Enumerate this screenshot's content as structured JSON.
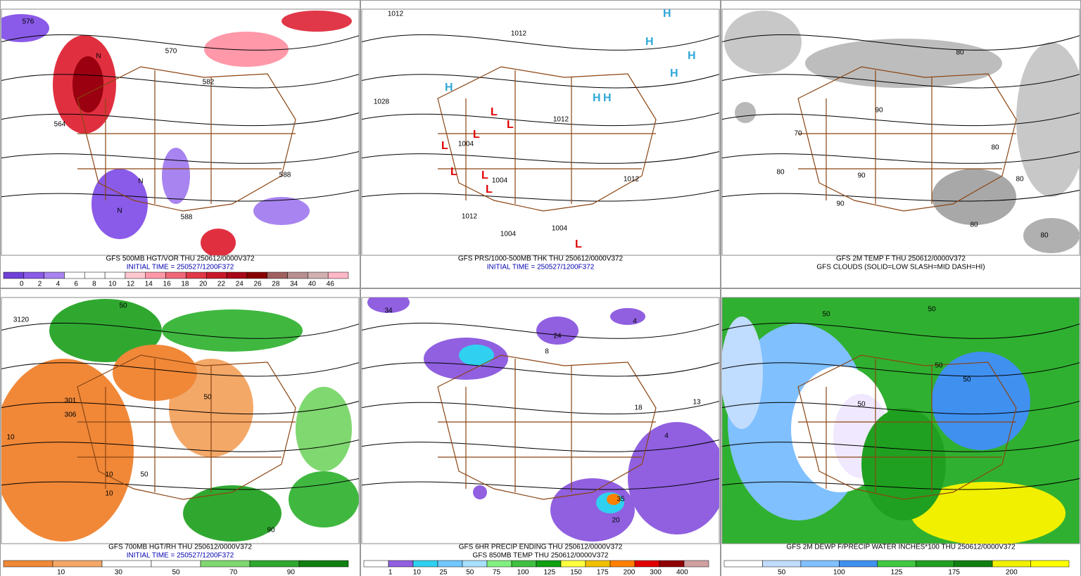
{
  "panels": [
    {
      "title": "GFS 500MB HGT/VOR THU 250612/0000V372",
      "subtitle": "INITIAL TIME = 250527/1200F372",
      "colorbar": {
        "labels": [
          0,
          2,
          4,
          6,
          8,
          10,
          12,
          14,
          16,
          18,
          20,
          22,
          24,
          26,
          28,
          34,
          40,
          46
        ],
        "colors": [
          "#7040d8",
          "#8a5ae8",
          "#a884f0",
          "#ffffff",
          "#ffffff",
          "#ffffff",
          "#ffc8d0",
          "#ff98a8",
          "#f06878",
          "#e03848",
          "#c81828",
          "#a80818",
          "#880000",
          "#a06060",
          "#b89090",
          "#d0b0b0",
          "#ffb8c8"
        ]
      },
      "map_labels": [
        "576",
        "570",
        "564",
        "582",
        "588",
        "588",
        "N",
        "N",
        "N"
      ]
    },
    {
      "title": "GFS PRS/1000-500MB THK THU 250612/0000V372",
      "subtitle": "INITIAL TIME = 250527/1200F372",
      "map_labels": [
        "1012",
        "1012",
        "1028",
        "1012",
        "1012",
        "1004",
        "1004",
        "1012",
        "1004",
        "1004"
      ],
      "highs": [
        "H",
        "H",
        "H",
        "H",
        "H",
        "H",
        "H"
      ],
      "lows": [
        "L",
        "L",
        "L",
        "L",
        "L",
        "L",
        "L",
        "L"
      ],
      "high_color": "#30a8d8",
      "low_color": "#e00000"
    },
    {
      "title": "GFS 2M TEMP F THU 250612/0000V372",
      "subtitle": "GFS CLOUDS (SOLID=LOW SLASH=MID DASH=HI)",
      "map_labels": [
        "80",
        "70",
        "80",
        "90",
        "90",
        "80",
        "80",
        "80",
        "90",
        "80"
      ]
    },
    {
      "title": "GFS 700MB HGT/RH THU 250612/0000V372",
      "subtitle": "INITIAL TIME = 250527/1200F372",
      "colorbar": {
        "labels": [
          10,
          30,
          50,
          70,
          90
        ],
        "colors": [
          "#f08838",
          "#f4a868",
          "#ffffff",
          "#ffffff",
          "#80d870",
          "#30a830",
          "#108010"
        ]
      },
      "map_labels": [
        "3120",
        "50",
        "10",
        "10",
        "301",
        "306",
        "50",
        "50",
        "10",
        "90"
      ]
    },
    {
      "title": "GFS 6HR PRECIP ENDING THU 250612/0000V372",
      "subtitle": "GFS 850MB TEMP THU 250612/0000V372",
      "colorbar": {
        "labels": [
          1,
          10,
          25,
          50,
          75,
          100,
          125,
          150,
          175,
          200,
          300,
          400
        ],
        "colors": [
          "#ffffff",
          "#9060e0",
          "#30d0f0",
          "#70c8ff",
          "#a8e0ff",
          "#80f080",
          "#40c040",
          "#10a010",
          "#ffff40",
          "#f0c000",
          "#ff8000",
          "#e00000",
          "#900000",
          "#d0a0a0"
        ]
      },
      "map_labels": [
        "34",
        "4",
        "8",
        "24",
        "18",
        "13",
        "4",
        "35",
        "20"
      ]
    },
    {
      "title": "GFS 2M DEWP F/PRECIP WATER INCHES*100 THU 250612/0000V372",
      "colorbar": {
        "labels": [
          50,
          100,
          125,
          175,
          200
        ],
        "colors": [
          "#ffffff",
          "#c0dcff",
          "#80c0ff",
          "#4090f0",
          "#40c840",
          "#20a020",
          "#108010",
          "#f0f000",
          "#ffff00"
        ]
      },
      "map_labels": [
        "50",
        "50",
        "50",
        "50",
        "50"
      ]
    }
  ]
}
